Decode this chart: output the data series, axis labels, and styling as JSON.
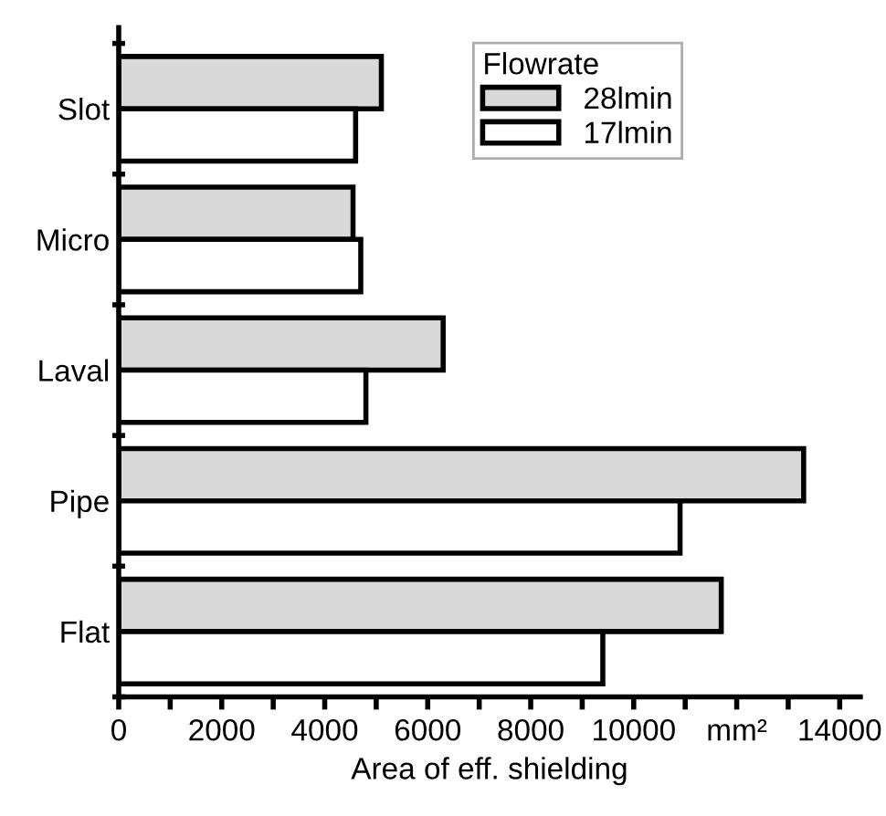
{
  "chart_data": {
    "type": "bar",
    "orientation": "horizontal",
    "xlabel": "Area of eff. shielding",
    "legend_title": "Flowrate",
    "legend": "top right",
    "grid": false,
    "categories": [
      "Slot",
      "Micro",
      "Laval",
      "Pipe",
      "Flat"
    ],
    "series": [
      {
        "name": "28lmin",
        "color": "#d9d9d9",
        "values": [
          5100,
          4550,
          6300,
          13300,
          11700
        ]
      },
      {
        "name": "17lmin",
        "color": "#ffffff",
        "values": [
          4600,
          4700,
          4800,
          10900,
          9400
        ]
      }
    ],
    "xlim": [
      0,
      14400
    ],
    "xticks": [
      0,
      {
        "value": 1000,
        "label": null
      },
      2000,
      {
        "value": 3000,
        "label": null
      },
      4000,
      {
        "value": 5000,
        "label": null
      },
      6000,
      {
        "value": 7000,
        "label": null
      },
      8000,
      {
        "value": 9000,
        "label": null
      },
      10000,
      {
        "value": 11000,
        "label": null
      },
      {
        "value": 12000,
        "label": "mm²"
      },
      {
        "value": 13000,
        "label": null
      },
      14000
    ]
  }
}
